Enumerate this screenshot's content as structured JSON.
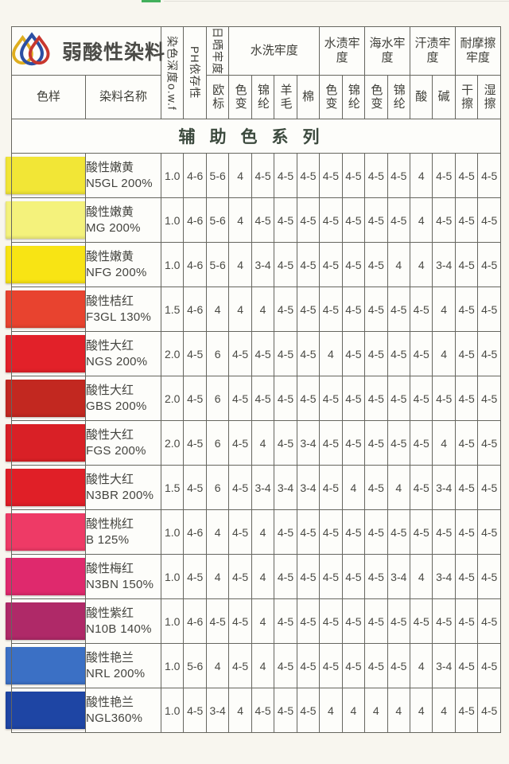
{
  "brand": {
    "title": "弱酸性染料"
  },
  "colors": {
    "page_bg": "#f8f6ef",
    "border": "#66665f",
    "header_text": "#3e3e38",
    "value_text": "#4a4a44",
    "banner_bg": "#b9dcb5",
    "banner_text": "#3c4a3e",
    "title_text": "#4b4b47",
    "strip_green": "#43b05c",
    "logo_yellow": "#dfae1f",
    "logo_blue": "#2c4fa3",
    "logo_red": "#c8372e"
  },
  "header": {
    "col_sample": "色样",
    "col_name": "染料名称",
    "col_depth": "染色深度o.w.f",
    "col_ph": "PH依存性",
    "groups": {
      "sun": "日晒牢度",
      "wash": "水洗牢度",
      "water_stain": "水渍牢度",
      "sea": "海水牢度",
      "sweat": "汗渍牢度",
      "rub": "耐摩擦牢度"
    },
    "subs": {
      "eu": "欧标",
      "shade": "色变",
      "nylon": "锦纶",
      "wool": "羊毛",
      "cotton": "棉",
      "shade2": "色变",
      "nylon2": "锦纶",
      "shade3": "色变",
      "nylon3": "锦纶",
      "acid": "酸",
      "alkali": "碱",
      "dry": "干擦",
      "wet": "湿擦"
    }
  },
  "banner": "辅助色系列",
  "rows": [
    {
      "name": "酸性嫩黄",
      "code": "N5GL 200%",
      "swatch": "#f2e636",
      "values": [
        "1.0",
        "4-6",
        "5-6",
        "4",
        "4-5",
        "4-5",
        "4-5",
        "4-5",
        "4-5",
        "4-5",
        "4-5",
        "4",
        "4-5",
        "4-5",
        "4-5"
      ]
    },
    {
      "name": "酸性嫩黄",
      "code": "MG 200%",
      "swatch": "#f4f27c",
      "values": [
        "1.0",
        "4-6",
        "5-6",
        "4",
        "4-5",
        "4-5",
        "4-5",
        "4-5",
        "4-5",
        "4-5",
        "4-5",
        "4",
        "4-5",
        "4-5",
        "4-5"
      ]
    },
    {
      "name": "酸性嫩黄",
      "code": "NFG 200%",
      "swatch": "#f8e414",
      "values": [
        "1.0",
        "4-6",
        "5-6",
        "4",
        "3-4",
        "4-5",
        "4-5",
        "4-5",
        "4-5",
        "4-5",
        "4",
        "4",
        "3-4",
        "4-5",
        "4-5"
      ]
    },
    {
      "name": "酸性桔红",
      "code": "F3GL 130%",
      "swatch": "#e8432f",
      "values": [
        "1.5",
        "4-6",
        "4",
        "4",
        "4",
        "4-5",
        "4-5",
        "4-5",
        "4-5",
        "4-5",
        "4-5",
        "4-5",
        "4",
        "4-5",
        "4-5"
      ]
    },
    {
      "name": "酸性大红",
      "code": "NGS 200%",
      "swatch": "#e22129",
      "values": [
        "2.0",
        "4-5",
        "6",
        "4-5",
        "4-5",
        "4-5",
        "4-5",
        "4",
        "4-5",
        "4-5",
        "4-5",
        "4-5",
        "4",
        "4-5",
        "4-5"
      ]
    },
    {
      "name": "酸性大红",
      "code": "GBS 200%",
      "swatch": "#c22820",
      "values": [
        "2.0",
        "4-5",
        "6",
        "4-5",
        "4-5",
        "4-5",
        "4-5",
        "4-5",
        "4-5",
        "4-5",
        "4-5",
        "4-5",
        "4-5",
        "4-5",
        "4-5"
      ]
    },
    {
      "name": "酸性大红",
      "code": "FGS 200%",
      "swatch": "#d92026",
      "values": [
        "2.0",
        "4-5",
        "6",
        "4-5",
        "4",
        "4-5",
        "3-4",
        "4-5",
        "4-5",
        "4-5",
        "4-5",
        "4-5",
        "4",
        "4-5",
        "4-5"
      ]
    },
    {
      "name": "酸性大红",
      "code": "N3BR 200%",
      "swatch": "#e01f27",
      "values": [
        "1.5",
        "4-5",
        "6",
        "4-5",
        "3-4",
        "3-4",
        "3-4",
        "4-5",
        "4",
        "4-5",
        "4",
        "4-5",
        "3-4",
        "4-5",
        "4-5"
      ]
    },
    {
      "name": "酸性桃红",
      "code": "B 125%",
      "swatch": "#ee3a66",
      "values": [
        "1.0",
        "4-6",
        "4",
        "4-5",
        "4",
        "4-5",
        "4-5",
        "4-5",
        "4-5",
        "4-5",
        "4-5",
        "4-5",
        "4-5",
        "4-5",
        "4-5"
      ]
    },
    {
      "name": "酸性梅红",
      "code": "N3BN 150%",
      "swatch": "#df296d",
      "values": [
        "1.0",
        "4-5",
        "4",
        "4-5",
        "4",
        "4-5",
        "4-5",
        "4-5",
        "4-5",
        "4-5",
        "3-4",
        "4",
        "3-4",
        "4-5",
        "4-5"
      ]
    },
    {
      "name": "酸性紫红",
      "code": "N10B 140%",
      "swatch": "#af2968",
      "values": [
        "1.0",
        "4-6",
        "4-5",
        "4-5",
        "4",
        "4-5",
        "4-5",
        "4-5",
        "4-5",
        "4-5",
        "4-5",
        "4-5",
        "4-5",
        "4-5",
        "4-5"
      ]
    },
    {
      "name": "酸性艳兰",
      "code": "NRL 200%",
      "swatch": "#3b70c5",
      "values": [
        "1.0",
        "5-6",
        "4",
        "4-5",
        "4",
        "4-5",
        "4-5",
        "4-5",
        "4-5",
        "4-5",
        "4-5",
        "4",
        "3-4",
        "4-5",
        "4-5"
      ]
    },
    {
      "name": "酸性艳兰",
      "code": "NGL360%",
      "swatch": "#1e45a4",
      "values": [
        "1.0",
        "4-5",
        "3-4",
        "4",
        "4-5",
        "4-5",
        "4-5",
        "4",
        "4",
        "4",
        "4",
        "4",
        "4",
        "4-5",
        "4-5"
      ]
    }
  ]
}
